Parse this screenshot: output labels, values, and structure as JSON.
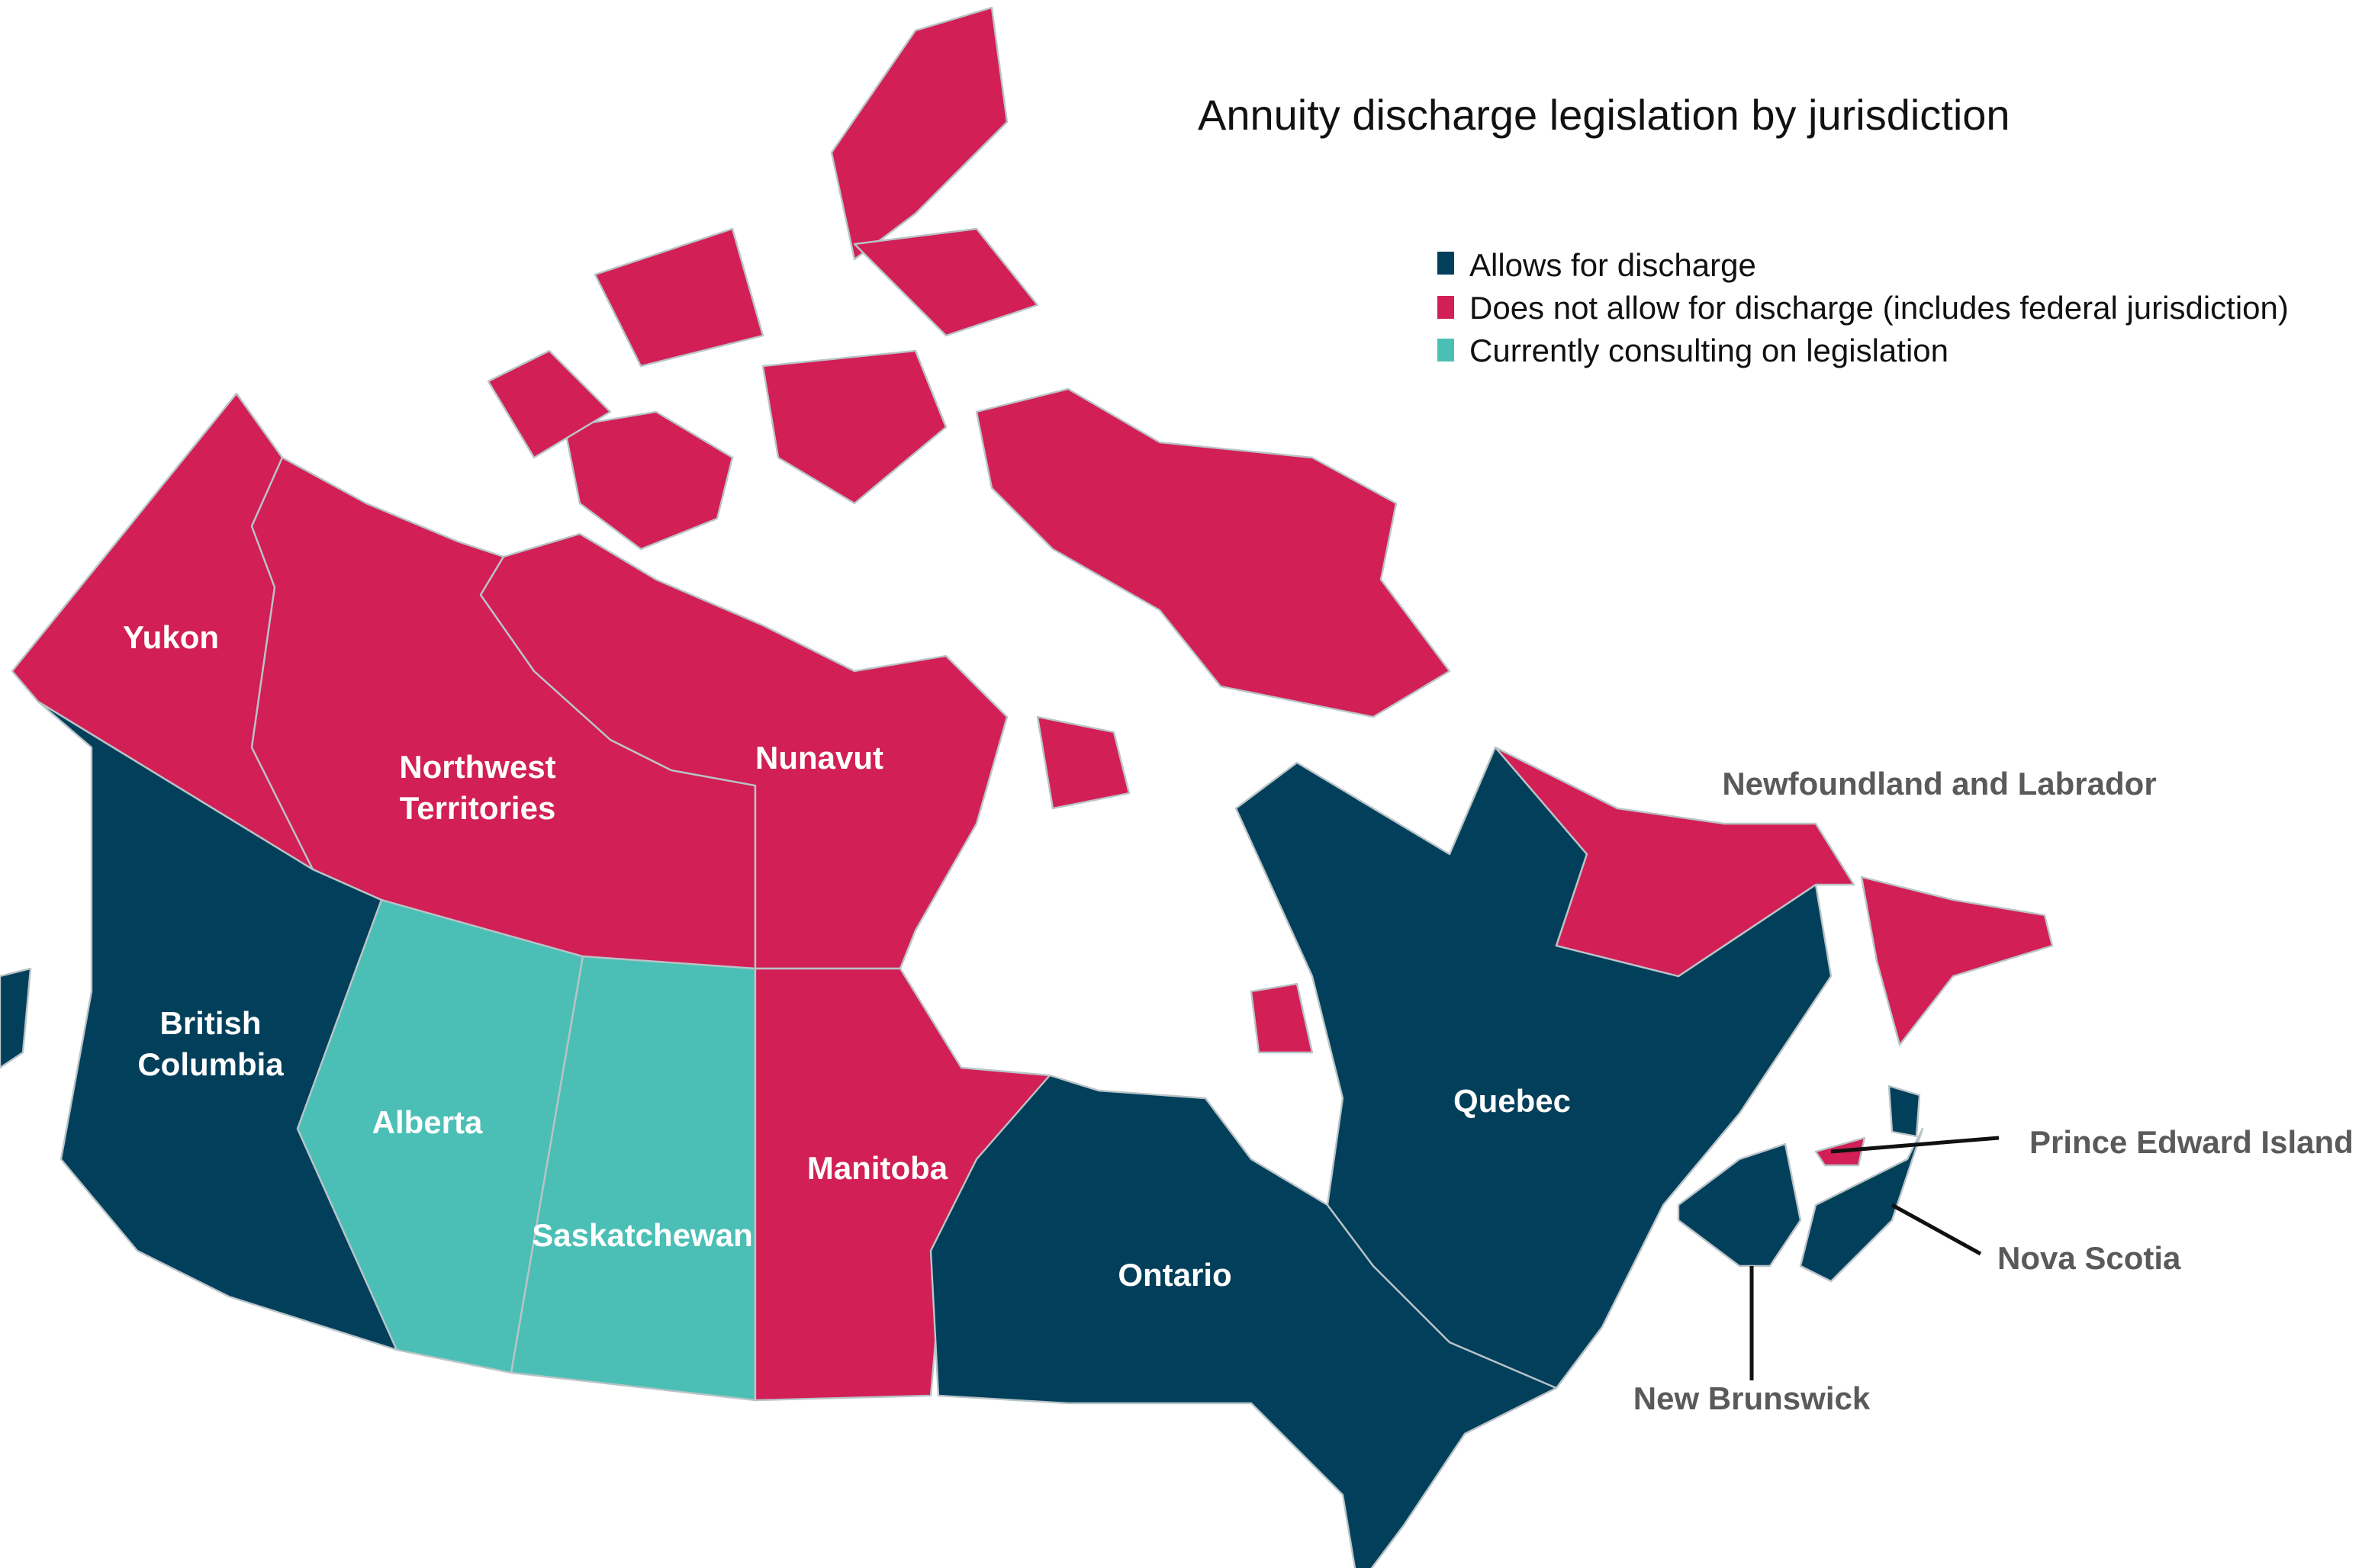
{
  "title": "Annuity discharge legislation by jurisdiction",
  "colors": {
    "allows": "#023f5a",
    "does_not_allow": "#d21f56",
    "consulting": "#4bbfb5"
  },
  "legend": [
    {
      "key": "allows",
      "label": "Allows for discharge"
    },
    {
      "key": "does_not_allow",
      "label": "Does not allow for discharge (includes federal jurisdiction)"
    },
    {
      "key": "consulting",
      "label": "Currently consulting on legislation"
    }
  ],
  "regions": {
    "yukon": {
      "name": "Yukon",
      "status": "does_not_allow"
    },
    "nwt": {
      "name_line1": "Northwest",
      "name_line2": "Territories",
      "status": "does_not_allow"
    },
    "nunavut": {
      "name": "Nunavut",
      "status": "does_not_allow"
    },
    "bc": {
      "name_line1": "British",
      "name_line2": "Columbia",
      "status": "allows"
    },
    "alberta": {
      "name": "Alberta",
      "status": "consulting"
    },
    "saskatchewan": {
      "name": "Saskatchewan",
      "status": "consulting"
    },
    "manitoba": {
      "name": "Manitoba",
      "status": "does_not_allow"
    },
    "ontario": {
      "name": "Ontario",
      "status": "allows"
    },
    "quebec": {
      "name": "Quebec",
      "status": "allows"
    },
    "nl": {
      "name": "Newfoundland and Labrador",
      "status": "does_not_allow"
    },
    "pei": {
      "name": "Prince Edward Island",
      "status": "does_not_allow"
    },
    "ns": {
      "name": "Nova Scotia",
      "status": "allows"
    },
    "nb": {
      "name": "New Brunswick",
      "status": "allows"
    }
  }
}
